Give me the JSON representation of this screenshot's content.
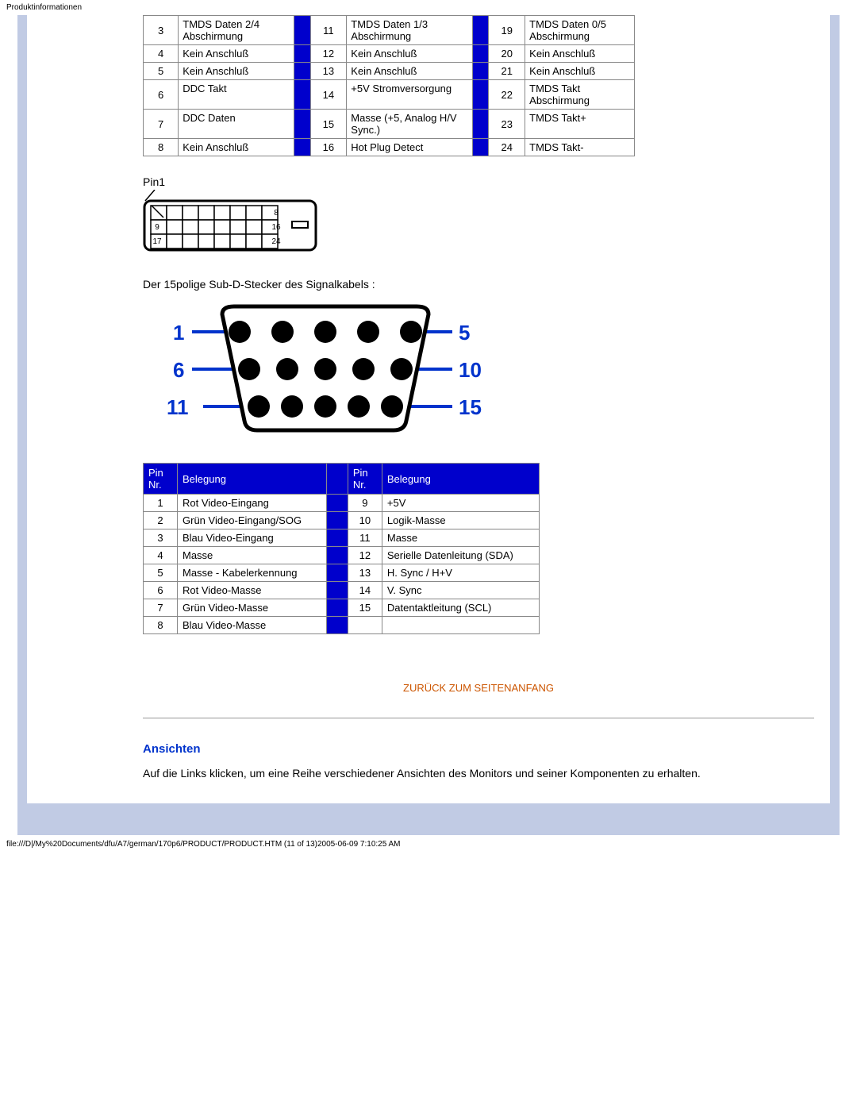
{
  "page_label": "Produktinformationen",
  "dvi_table": {
    "rows": [
      {
        "c1n": "3",
        "c1t": "TMDS Daten 2/4 Abschirmung",
        "c2n": "11",
        "c2t": "TMDS Daten 1/3 Abschirmung",
        "c3n": "19",
        "c3t": "TMDS Daten 0/5 Abschirmung"
      },
      {
        "c1n": "4",
        "c1t": "Kein Anschluß",
        "c2n": "12",
        "c2t": "Kein Anschluß",
        "c3n": "20",
        "c3t": "Kein Anschluß"
      },
      {
        "c1n": "5",
        "c1t": "Kein Anschluß",
        "c2n": "13",
        "c2t": "Kein Anschluß",
        "c3n": "21",
        "c3t": "Kein Anschluß"
      },
      {
        "c1n": "6",
        "c1t": "DDC Takt",
        "c2n": "14",
        "c2t": "+5V Stromversorgung",
        "c3n": "22",
        "c3t": "TMDS Takt Abschirmung"
      },
      {
        "c1n": "7",
        "c1t": "DDC Daten",
        "c2n": "15",
        "c2t": "Masse (+5, Analog H/V Sync.)",
        "c3n": "23",
        "c3t": "TMDS Takt+"
      },
      {
        "c1n": "8",
        "c1t": "Kein Anschluß",
        "c2n": "16",
        "c2t": "Hot Plug Detect",
        "c3n": "24",
        "c3t": "TMDS Takt-"
      }
    ]
  },
  "pin1_label": "Pin1",
  "dvi_diagram": {
    "labels": {
      "c1": "8",
      "c2l": "9",
      "c2r": "16",
      "c3l": "17",
      "c3r": "24"
    }
  },
  "subd_text": "Der 15polige Sub-D-Stecker des Signalkabels :",
  "dsub_diagram": {
    "left_labels": [
      "1",
      "6",
      "11"
    ],
    "right_labels": [
      "5",
      "10",
      "15"
    ],
    "label_color": "#0033cc",
    "label_fontsize": 26,
    "label_fontweight": "bold",
    "row_counts": [
      5,
      5,
      5
    ]
  },
  "vga_table": {
    "headers": {
      "pin": "Pin Nr.",
      "assign": "Belegung"
    },
    "rows": [
      {
        "l_n": "1",
        "l_t": "Rot Video-Eingang",
        "r_n": "9",
        "r_t": "+5V"
      },
      {
        "l_n": "2",
        "l_t": "Grün Video-Eingang/SOG",
        "r_n": "10",
        "r_t": "Logik-Masse"
      },
      {
        "l_n": "3",
        "l_t": "Blau Video-Eingang",
        "r_n": "11",
        "r_t": "Masse"
      },
      {
        "l_n": "4",
        "l_t": "Masse",
        "r_n": "12",
        "r_t": "Serielle Datenleitung (SDA)"
      },
      {
        "l_n": "5",
        "l_t": "Masse - Kabelerkennung",
        "r_n": "13",
        "r_t": "H. Sync / H+V"
      },
      {
        "l_n": "6",
        "l_t": "Rot Video-Masse",
        "r_n": "14",
        "r_t": "V. Sync"
      },
      {
        "l_n": "7",
        "l_t": "Grün Video-Masse",
        "r_n": "15",
        "r_t": "Datentaktleitung (SCL)"
      },
      {
        "l_n": "8",
        "l_t": "Blau Video-Masse",
        "r_n": "",
        "r_t": ""
      }
    ]
  },
  "back_link": "ZURÜCK ZUM SEITENANFANG",
  "views": {
    "title": "Ansichten",
    "text": "Auf die Links klicken, um eine Reihe verschiedener Ansichten des Monitors und seiner Komponenten zu erhalten."
  },
  "footer": "file:///D|/My%20Documents/dfu/A7/german/170p6/PRODUCT/PRODUCT.HTM (11 of 13)2005-06-09 7:10:25 AM"
}
